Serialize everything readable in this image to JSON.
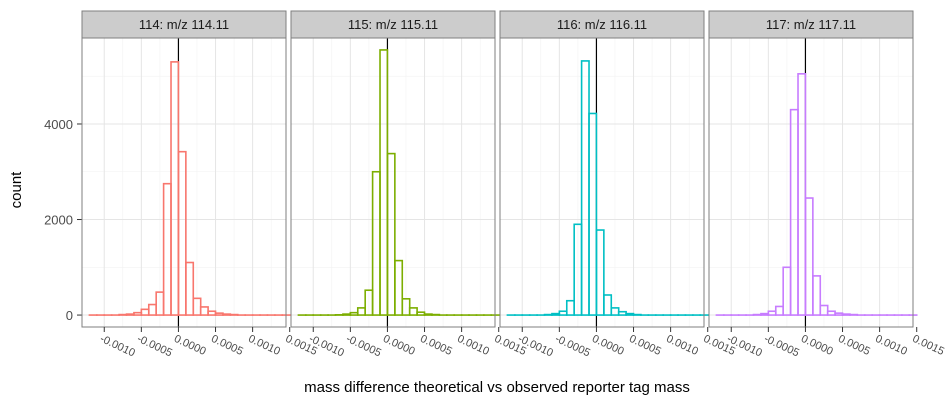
{
  "chart_data": {
    "type": "bar",
    "subtype": "faceted-histogram",
    "xlabel": "mass difference theoretical vs observed reporter tag mass",
    "ylabel": "count",
    "xlim": [
      -0.0013,
      0.00145
    ],
    "ylim": [
      -250,
      5800
    ],
    "y_ticks": [
      0,
      2000,
      4000
    ],
    "y_tick_labels": [
      "0",
      "2000",
      "4000"
    ],
    "x_ticks": [
      -0.001,
      -0.0005,
      0.0,
      0.0005,
      0.001,
      0.0015
    ],
    "x_tick_labels": [
      "-0.0010",
      "-0.0005",
      "0.0000",
      "0.0005",
      "0.0010",
      "0.0015"
    ],
    "reference_line_x": 0.0,
    "grid": true,
    "bin_width": 0.0001,
    "bin_start": -0.0012,
    "facets": [
      {
        "label": "114: m/z 114.11",
        "color": "#F8766D",
        "values": [
          0,
          0,
          0,
          0,
          10,
          20,
          50,
          120,
          220,
          480,
          2750,
          5300,
          3420,
          1100,
          350,
          170,
          80,
          40,
          20,
          10,
          0,
          0,
          0,
          0,
          0,
          0,
          0
        ]
      },
      {
        "label": "115: m/z 115.11",
        "color": "#7CAE00",
        "values": [
          0,
          0,
          0,
          0,
          0,
          5,
          20,
          50,
          150,
          520,
          3000,
          5550,
          3380,
          1140,
          340,
          150,
          60,
          20,
          10,
          0,
          0,
          0,
          0,
          0,
          0,
          0,
          0
        ]
      },
      {
        "label": "116: m/z 116.11",
        "color": "#00BFC4",
        "values": [
          0,
          0,
          0,
          0,
          0,
          10,
          30,
          80,
          300,
          1900,
          5320,
          4220,
          1780,
          420,
          150,
          70,
          30,
          10,
          0,
          0,
          0,
          0,
          0,
          0,
          0,
          0,
          0
        ]
      },
      {
        "label": "117: m/z 117.11",
        "color": "#C77CFF",
        "values": [
          0,
          0,
          0,
          0,
          0,
          10,
          30,
          80,
          180,
          1000,
          4300,
          5050,
          2450,
          820,
          200,
          80,
          40,
          20,
          10,
          0,
          0,
          0,
          0,
          0,
          0,
          0,
          0
        ]
      }
    ]
  }
}
